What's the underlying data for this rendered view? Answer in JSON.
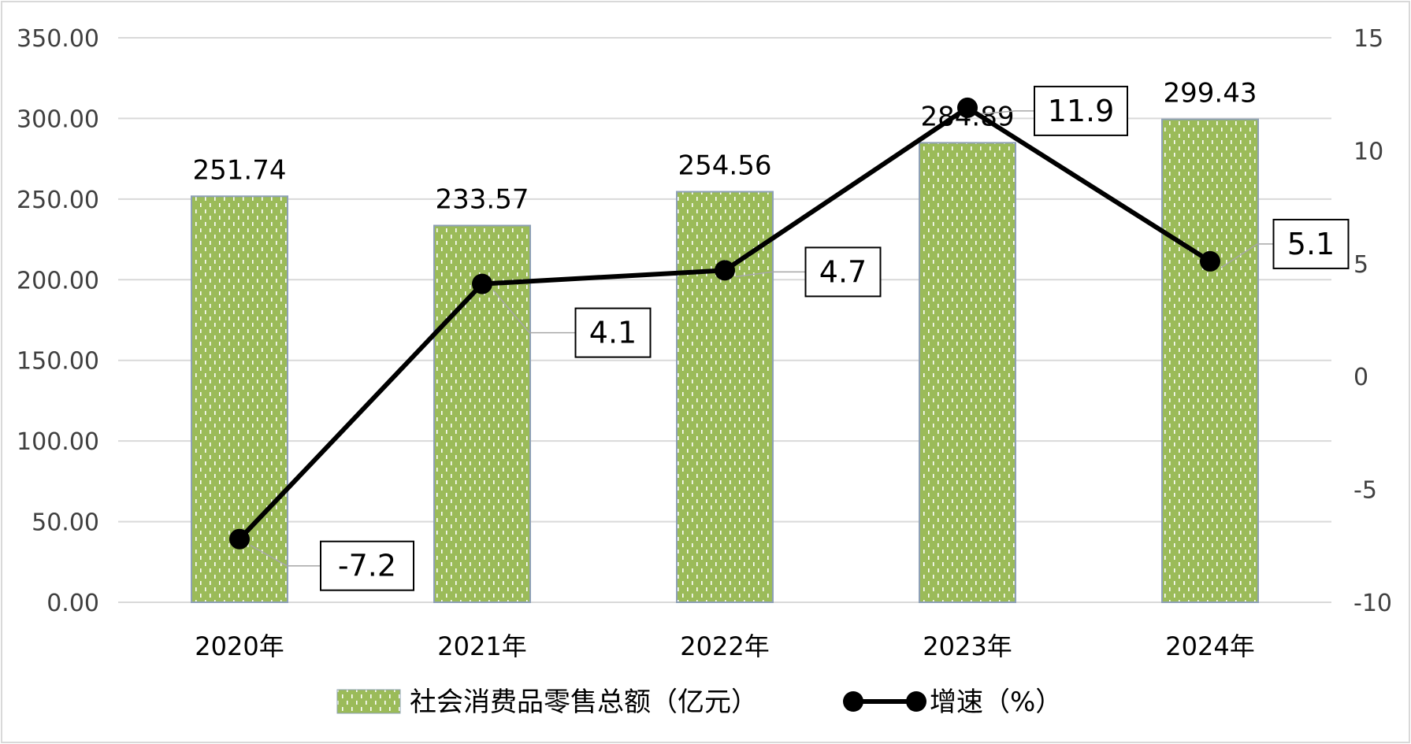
{
  "chart_data": {
    "type": "bar",
    "categories": [
      "2020年",
      "2021年",
      "2022年",
      "2023年",
      "2024年"
    ],
    "series": [
      {
        "name": "社会消费品零售总额（亿元）",
        "type": "bar",
        "axis": "left",
        "values": [
          251.74,
          233.57,
          254.56,
          284.89,
          299.43
        ],
        "value_labels": [
          "251.74",
          "233.57",
          "254.56",
          "284.89",
          "299.43"
        ],
        "color": "#9BBB59"
      },
      {
        "name": "增速（%）",
        "type": "line",
        "axis": "right",
        "values": [
          -7.2,
          4.1,
          4.7,
          11.9,
          5.1
        ],
        "value_labels": [
          "-7.2",
          "4.1",
          "4.7",
          "11.9",
          "5.1"
        ],
        "color": "#000000"
      }
    ],
    "y_left": {
      "ylim": [
        0,
        350
      ],
      "ticks": [
        0,
        50,
        100,
        150,
        200,
        250,
        300,
        350
      ],
      "tick_labels": [
        "0.00",
        "50.00",
        "100.00",
        "150.00",
        "200.00",
        "250.00",
        "300.00",
        "350.00"
      ]
    },
    "y_right": {
      "ylim": [
        -10,
        15
      ],
      "ticks": [
        -10,
        -5,
        0,
        5,
        10,
        15
      ],
      "tick_labels": [
        "-10",
        "-5",
        "0",
        "5",
        "10",
        "15"
      ]
    },
    "grid": true,
    "legend_position": "bottom-center",
    "colors": {
      "bar_fill": "#9BBB59",
      "bar_pattern_mark": "#ffffff",
      "bar_border": "#8EA0B6",
      "line": "#000000",
      "gridline": "#D9D9D9",
      "axis_text": "#404040",
      "label_text": "#000000"
    }
  }
}
